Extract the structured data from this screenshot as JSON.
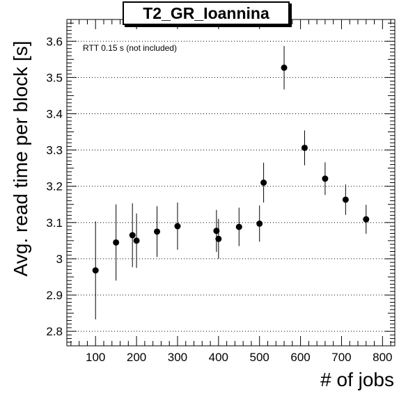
{
  "chart_data": {
    "type": "scatter",
    "title": "T2_GR_Ioannina",
    "xlabel": "# of jobs",
    "ylabel": "Avg. read time per block [s]",
    "annotation": "RTT 0.15 s (not included)",
    "xlim": [
      30,
      830
    ],
    "ylim": [
      2.76,
      3.66
    ],
    "xticks": [
      100,
      200,
      300,
      400,
      500,
      600,
      700,
      800
    ],
    "yticks": [
      2.8,
      2.9,
      3.0,
      3.1,
      3.2,
      3.3,
      3.4,
      3.5,
      3.6
    ],
    "ytick_labels": [
      "2.8",
      "2.9",
      "3",
      "3.1",
      "3.2",
      "3.3",
      "3.4",
      "3.5",
      "3.6"
    ],
    "grid": "horizontal dotted",
    "points": [
      {
        "x": 100,
        "y": 2.968,
        "err": 0.135
      },
      {
        "x": 150,
        "y": 3.045,
        "err": 0.105
      },
      {
        "x": 190,
        "y": 3.065,
        "err": 0.088
      },
      {
        "x": 200,
        "y": 3.05,
        "err": 0.075
      },
      {
        "x": 250,
        "y": 3.075,
        "err": 0.07
      },
      {
        "x": 300,
        "y": 3.09,
        "err": 0.065
      },
      {
        "x": 395,
        "y": 3.077,
        "err": 0.058
      },
      {
        "x": 400,
        "y": 3.055,
        "err": 0.055
      },
      {
        "x": 450,
        "y": 3.088,
        "err": 0.053
      },
      {
        "x": 500,
        "y": 3.097,
        "err": 0.05
      },
      {
        "x": 510,
        "y": 3.21,
        "err": 0.055
      },
      {
        "x": 560,
        "y": 3.527,
        "err": 0.06
      },
      {
        "x": 610,
        "y": 3.306,
        "err": 0.048
      },
      {
        "x": 660,
        "y": 3.221,
        "err": 0.045
      },
      {
        "x": 710,
        "y": 3.163,
        "err": 0.042
      },
      {
        "x": 760,
        "y": 3.109,
        "err": 0.04
      }
    ]
  }
}
